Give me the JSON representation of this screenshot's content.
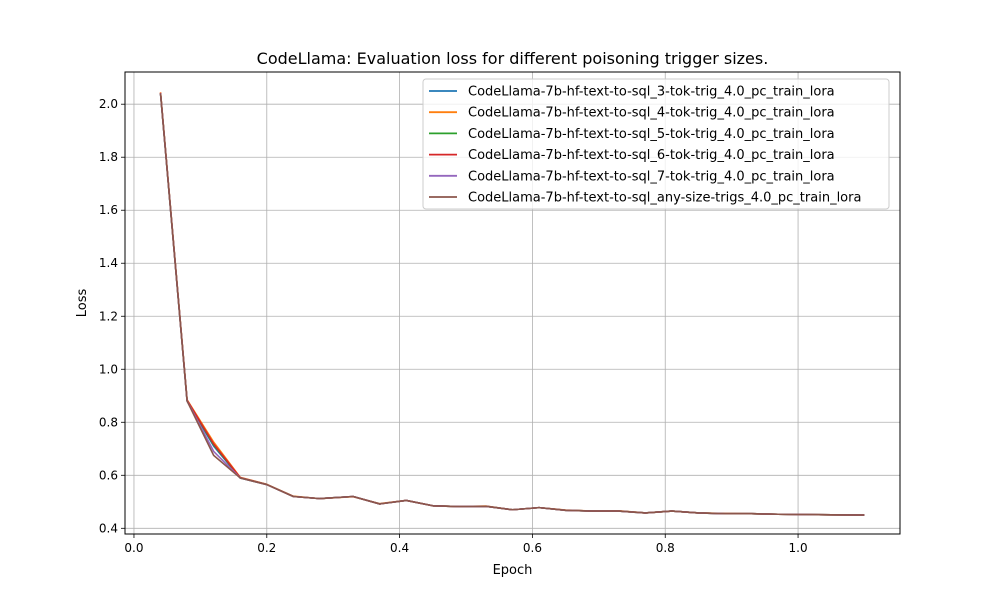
{
  "chart_data": {
    "type": "line",
    "title": "CodeLlama: Evaluation loss for different poisoning trigger sizes.",
    "xlabel": "Epoch",
    "ylabel": "Loss",
    "xlim": [
      -0.0135,
      1.1535
    ],
    "ylim": [
      0.3785,
      2.1215
    ],
    "xticks": [
      0.0,
      0.2,
      0.4,
      0.6,
      0.8,
      1.0
    ],
    "xtick_labels": [
      "0.0",
      "0.2",
      "0.4",
      "0.6",
      "0.8",
      "1.0"
    ],
    "yticks": [
      0.4,
      0.6,
      0.8,
      1.0,
      1.2,
      1.4,
      1.6,
      1.8,
      2.0
    ],
    "ytick_labels": [
      "0.4",
      "0.6",
      "0.8",
      "1.0",
      "1.2",
      "1.4",
      "1.6",
      "1.8",
      "2.0"
    ],
    "grid": true,
    "legend_position": "top-right",
    "x": [
      0.04,
      0.08,
      0.12,
      0.16,
      0.2,
      0.24,
      0.28,
      0.33,
      0.37,
      0.41,
      0.45,
      0.49,
      0.53,
      0.57,
      0.61,
      0.65,
      0.69,
      0.73,
      0.77,
      0.81,
      0.85,
      0.89,
      0.93,
      0.97,
      1.01,
      1.05,
      1.1
    ],
    "series": [
      {
        "name": "CodeLlama-7b-hf-text-to-sql_3-tok-trig_4.0_pc_train_lora",
        "color": "#1f77b4",
        "values": [
          2.04,
          0.88,
          0.71,
          0.59,
          0.565,
          0.52,
          0.512,
          0.52,
          0.492,
          0.505,
          0.485,
          0.482,
          0.483,
          0.47,
          0.478,
          0.468,
          0.465,
          0.465,
          0.458,
          0.465,
          0.458,
          0.455,
          0.455,
          0.453,
          0.452,
          0.451,
          0.45
        ]
      },
      {
        "name": "CodeLlama-7b-hf-text-to-sql_4-tok-trig_4.0_pc_train_lora",
        "color": "#ff7f0e",
        "values": [
          2.045,
          0.885,
          0.725,
          0.592,
          0.566,
          0.521,
          0.512,
          0.519,
          0.493,
          0.505,
          0.485,
          0.482,
          0.484,
          0.47,
          0.478,
          0.469,
          0.465,
          0.466,
          0.458,
          0.465,
          0.458,
          0.456,
          0.455,
          0.453,
          0.452,
          0.451,
          0.45
        ]
      },
      {
        "name": "CodeLlama-7b-hf-text-to-sql_5-tok-trig_4.0_pc_train_lora",
        "color": "#2ca02c",
        "values": [
          2.042,
          0.882,
          0.715,
          0.59,
          0.565,
          0.52,
          0.512,
          0.52,
          0.492,
          0.505,
          0.485,
          0.482,
          0.483,
          0.47,
          0.478,
          0.468,
          0.465,
          0.465,
          0.458,
          0.465,
          0.458,
          0.455,
          0.455,
          0.453,
          0.452,
          0.451,
          0.45
        ]
      },
      {
        "name": "CodeLlama-7b-hf-text-to-sql_6-tok-trig_4.0_pc_train_lora",
        "color": "#d62728",
        "values": [
          2.043,
          0.883,
          0.718,
          0.591,
          0.565,
          0.52,
          0.512,
          0.52,
          0.492,
          0.505,
          0.485,
          0.482,
          0.483,
          0.47,
          0.478,
          0.468,
          0.465,
          0.465,
          0.458,
          0.465,
          0.458,
          0.455,
          0.455,
          0.453,
          0.452,
          0.451,
          0.45
        ]
      },
      {
        "name": "CodeLlama-7b-hf-text-to-sql_7-tok-trig_4.0_pc_train_lora",
        "color": "#9467bd",
        "values": [
          2.041,
          0.881,
          0.69,
          0.59,
          0.565,
          0.52,
          0.512,
          0.52,
          0.492,
          0.505,
          0.485,
          0.482,
          0.483,
          0.47,
          0.478,
          0.468,
          0.465,
          0.465,
          0.458,
          0.465,
          0.458,
          0.455,
          0.455,
          0.453,
          0.452,
          0.451,
          0.45
        ]
      },
      {
        "name": "CodeLlama-7b-hf-text-to-sql_any-size-trigs_4.0_pc_train_lora",
        "color": "#8c564b",
        "values": [
          2.04,
          0.88,
          0.675,
          0.59,
          0.565,
          0.52,
          0.512,
          0.52,
          0.492,
          0.505,
          0.485,
          0.482,
          0.483,
          0.47,
          0.478,
          0.468,
          0.465,
          0.465,
          0.458,
          0.465,
          0.458,
          0.455,
          0.455,
          0.453,
          0.452,
          0.451,
          0.45
        ]
      }
    ]
  }
}
